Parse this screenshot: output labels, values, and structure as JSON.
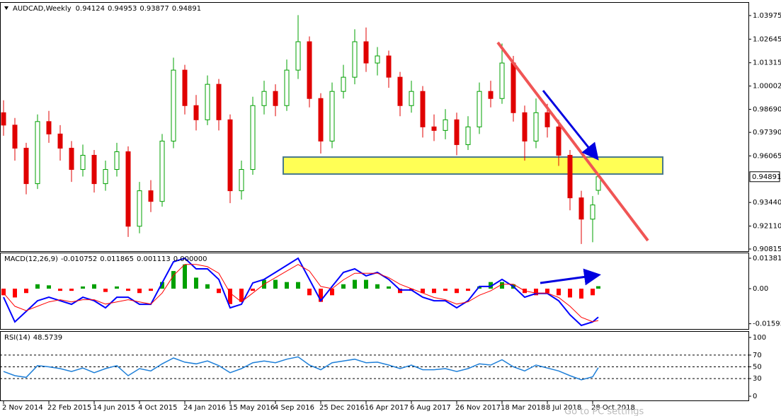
{
  "chart_data": [
    {
      "type": "candlestick",
      "title": "AUDCAD,Weekly",
      "x": [
        0,
        4,
        8,
        12,
        16,
        20,
        24,
        28,
        32,
        36,
        40,
        44,
        48,
        52,
        56,
        60,
        64,
        68,
        72,
        76,
        80,
        84,
        88,
        92,
        96,
        100,
        104,
        108,
        112,
        116,
        120,
        124,
        128,
        132,
        136,
        140,
        144,
        148,
        152,
        156,
        160,
        164,
        168,
        172,
        176,
        180,
        184,
        188,
        192,
        196,
        200,
        204,
        208,
        210
      ],
      "ohlc": [
        [
          0.985,
          0.992,
          0.972,
          0.978
        ],
        [
          0.978,
          0.982,
          0.958,
          0.965
        ],
        [
          0.965,
          0.968,
          0.939,
          0.945
        ],
        [
          0.945,
          0.984,
          0.942,
          0.98
        ],
        [
          0.98,
          0.986,
          0.968,
          0.973
        ],
        [
          0.973,
          0.978,
          0.958,
          0.965
        ],
        [
          0.965,
          0.969,
          0.946,
          0.953
        ],
        [
          0.953,
          0.967,
          0.949,
          0.961
        ],
        [
          0.961,
          0.964,
          0.94,
          0.945
        ],
        [
          0.945,
          0.958,
          0.941,
          0.953
        ],
        [
          0.953,
          0.968,
          0.949,
          0.963
        ],
        [
          0.963,
          0.966,
          0.915,
          0.921
        ],
        [
          0.921,
          0.946,
          0.917,
          0.941
        ],
        [
          0.941,
          0.947,
          0.929,
          0.935
        ],
        [
          0.935,
          0.973,
          0.932,
          0.969
        ],
        [
          0.969,
          1.016,
          0.965,
          1.009
        ],
        [
          1.009,
          1.012,
          0.984,
          0.989
        ],
        [
          0.989,
          0.995,
          0.975,
          0.981
        ],
        [
          0.981,
          1.006,
          0.978,
          1.001
        ],
        [
          1.001,
          1.004,
          0.975,
          0.981
        ],
        [
          0.981,
          0.984,
          0.934,
          0.941
        ],
        [
          0.941,
          0.958,
          0.936,
          0.953
        ],
        [
          0.953,
          0.994,
          0.95,
          0.989
        ],
        [
          0.989,
          1.003,
          0.984,
          0.997
        ],
        [
          0.997,
          1.001,
          0.983,
          0.989
        ],
        [
          0.989,
          1.015,
          0.986,
          1.009
        ],
        [
          1.009,
          1.04,
          1.004,
          1.025
        ],
        [
          1.025,
          1.028,
          0.988,
          0.993
        ],
        [
          0.993,
          0.996,
          0.962,
          0.969
        ],
        [
          0.969,
          1.002,
          0.965,
          0.997
        ],
        [
          0.997,
          1.012,
          0.993,
          1.005
        ],
        [
          1.005,
          1.032,
          1.001,
          1.025
        ],
        [
          1.025,
          1.033,
          1.008,
          1.013
        ],
        [
          1.013,
          1.022,
          1.006,
          1.017
        ],
        [
          1.017,
          1.02,
          0.999,
          1.005
        ],
        [
          1.005,
          1.008,
          0.983,
          0.989
        ],
        [
          0.989,
          1.003,
          0.985,
          0.997
        ],
        [
          0.997,
          1.0,
          0.971,
          0.977
        ],
        [
          0.977,
          0.984,
          0.969,
          0.975
        ],
        [
          0.975,
          0.987,
          0.97,
          0.981
        ],
        [
          0.981,
          0.985,
          0.961,
          0.967
        ],
        [
          0.967,
          0.983,
          0.964,
          0.977
        ],
        [
          0.977,
          1.002,
          0.973,
          0.997
        ],
        [
          0.997,
          1.003,
          0.988,
          0.993
        ],
        [
          0.993,
          1.024,
          0.99,
          1.013
        ],
        [
          1.013,
          1.017,
          0.98,
          0.985
        ],
        [
          0.985,
          0.989,
          0.958,
          0.969
        ],
        [
          0.969,
          0.993,
          0.965,
          0.985
        ],
        [
          0.985,
          0.99,
          0.971,
          0.977
        ],
        [
          0.977,
          0.981,
          0.955,
          0.961
        ],
        [
          0.961,
          0.964,
          0.93,
          0.937
        ],
        [
          0.937,
          0.941,
          0.911,
          0.925
        ],
        [
          0.925,
          0.938,
          0.912,
          0.933
        ],
        [
          0.94124,
          0.94953,
          0.93877,
          0.94891
        ]
      ],
      "up_color": "#00a000",
      "down_color": "#e00000",
      "xlim": [
        -1.25,
        263
      ],
      "xticks": [
        {
          "value": 0,
          "label": "2 Nov 2014"
        },
        {
          "value": 16,
          "label": "22 Feb 2015"
        },
        {
          "value": 32,
          "label": "14 Jun 2015"
        },
        {
          "value": 48,
          "label": "4 Oct 2015"
        },
        {
          "value": 64,
          "label": "24 Jan 2016"
        },
        {
          "value": 80,
          "label": "15 May 2016"
        },
        {
          "value": 96,
          "label": "4 Sep 2016"
        },
        {
          "value": 112,
          "label": "25 Dec 2016"
        },
        {
          "value": 128,
          "label": "16 Apr 2017"
        },
        {
          "value": 144,
          "label": "6 Aug 2017"
        },
        {
          "value": 160,
          "label": "26 Nov 2017"
        },
        {
          "value": 176,
          "label": "18 Mar 2018"
        },
        {
          "value": 192,
          "label": "8 Jul 2018"
        },
        {
          "value": 208,
          "label": "28 Oct 2018"
        }
      ],
      "ylim": [
        0.90695,
        1.04693
      ],
      "yticks": [
        1.03975,
        1.02645,
        1.01315,
        1.00002,
        {
          "value": 0.9869,
          "label": "0.98690"
        },
        {
          "value": 0.9739,
          "label": "0.97390"
        },
        0.96065,
        {
          "value": 0.9344,
          "label": "0.93440"
        },
        {
          "value": 0.9211,
          "label": "0.92110"
        },
        0.90815
      ]
    },
    {
      "type": "macd",
      "title": "MACD(12,26,9)",
      "legend_values": [
        -0.010752,
        0.011865,
        0.001113,
        {
          "value": 0,
          "label": "0.000000"
        }
      ],
      "x": [
        0,
        4,
        8,
        12,
        16,
        20,
        24,
        28,
        32,
        36,
        40,
        44,
        48,
        52,
        56,
        60,
        64,
        68,
        72,
        76,
        80,
        84,
        88,
        92,
        96,
        100,
        104,
        108,
        112,
        116,
        120,
        124,
        128,
        132,
        136,
        140,
        144,
        148,
        152,
        156,
        160,
        164,
        168,
        172,
        176,
        180,
        184,
        188,
        192,
        196,
        200,
        204,
        208,
        210
      ],
      "histogram": [
        -0.003,
        -0.004,
        -0.002,
        0.002,
        0.0015,
        -0.001,
        -0.001,
        0.001,
        0.002,
        -0.0015,
        0.001,
        -0.001,
        -0.002,
        -0.001,
        0.003,
        0.008,
        0.011,
        0.005,
        0.002,
        -0.002,
        -0.007,
        -0.006,
        -0.001,
        0.004,
        0.004,
        0.003,
        0.003,
        -0.003,
        -0.006,
        -0.003,
        0.002,
        0.004,
        0.004,
        0.002,
        0.001,
        -0.002,
        -0.001,
        -0.002,
        -0.002,
        -0.001,
        -0.002,
        -0.001,
        0.001,
        0.003,
        0.003,
        0.002,
        -0.002,
        -0.003,
        -0.002,
        -0.003,
        -0.004,
        -0.0045,
        -0.003,
        0.001113
      ],
      "pos_color": "#00a000",
      "neg_color": "#ff0000",
      "series": [
        {
          "color": "#0000ff",
          "values": [
            -0.0039,
            -0.0151,
            -0.0103,
            -0.0055,
            -0.0039,
            -0.0055,
            -0.0071,
            -0.0039,
            -0.0055,
            -0.0087,
            -0.0039,
            -0.0039,
            -0.0071,
            -0.0071,
            0.0026,
            0.0122,
            0.0138,
            0.009,
            0.009,
            0.0042,
            -0.0087,
            -0.0071,
            0.0026,
            0.0042,
            0.0074,
            0.0106,
            0.0138,
            0.0042,
            -0.0055,
            0.001,
            0.0074,
            0.009,
            0.0058,
            0.0074,
            0.0042,
            -0.0006,
            -0.0006,
            -0.0039,
            -0.0055,
            -0.0055,
            -0.0087,
            -0.0055,
            0.001,
            0.001,
            0.0042,
            0.001,
            -0.0039,
            -0.0022,
            -0.0022,
            -0.0055,
            -0.0119,
            -0.0167,
            -0.0151,
            -0.0129
          ]
        },
        {
          "color": "#ff0000",
          "values": [
            -0.002,
            -0.008,
            -0.01,
            -0.008,
            -0.006,
            -0.005,
            -0.006,
            -0.005,
            -0.005,
            -0.007,
            -0.006,
            -0.005,
            -0.006,
            -0.007,
            -0.002,
            0.006,
            0.011,
            0.011,
            0.01,
            0.007,
            -0.002,
            -0.006,
            -0.002,
            0.002,
            0.005,
            0.008,
            0.011,
            0.008,
            0.001,
            0.0,
            0.004,
            0.007,
            0.007,
            0.007,
            0.005,
            0.002,
            0.0,
            -0.002,
            -0.004,
            -0.005,
            -0.007,
            -0.006,
            -0.003,
            -0.001,
            0.002,
            0.002,
            -0.001,
            -0.002,
            -0.002,
            -0.004,
            -0.008,
            -0.013,
            -0.015,
            -0.0145
          ]
        }
      ],
      "ylim": [
        -0.01831,
        0.01606
      ],
      "yticks": [
        0.013815,
        {
          "value": 0,
          "label": "0.00"
        },
        -0.015933
      ]
    },
    {
      "type": "rsi",
      "title": "RSI(14)",
      "legend_value": 48.5739,
      "color": "#1e7fd8",
      "x": [
        0,
        4,
        8,
        12,
        16,
        20,
        24,
        28,
        32,
        36,
        40,
        44,
        48,
        52,
        56,
        60,
        64,
        68,
        72,
        76,
        80,
        84,
        88,
        92,
        96,
        100,
        104,
        108,
        112,
        116,
        120,
        124,
        128,
        132,
        136,
        140,
        144,
        148,
        152,
        156,
        160,
        164,
        168,
        172,
        176,
        180,
        184,
        188,
        192,
        196,
        200,
        204,
        208,
        210
      ],
      "values": [
        42,
        35,
        32,
        52,
        50,
        47,
        42,
        48,
        40,
        47,
        52,
        35,
        47,
        43,
        55,
        65,
        58,
        55,
        60,
        52,
        40,
        47,
        57,
        60,
        57,
        63,
        67,
        53,
        45,
        57,
        60,
        63,
        57,
        58,
        53,
        47,
        53,
        45,
        45,
        47,
        42,
        47,
        55,
        53,
        62,
        50,
        43,
        53,
        48,
        43,
        35,
        28,
        33,
        48.5739
      ],
      "levels": [
        70,
        50,
        30
      ],
      "ylim": [
        -7.2,
        109.6
      ],
      "yticks": [
        100,
        70,
        50,
        30,
        0
      ]
    }
  ],
  "watermark": "Go to PC settings"
}
